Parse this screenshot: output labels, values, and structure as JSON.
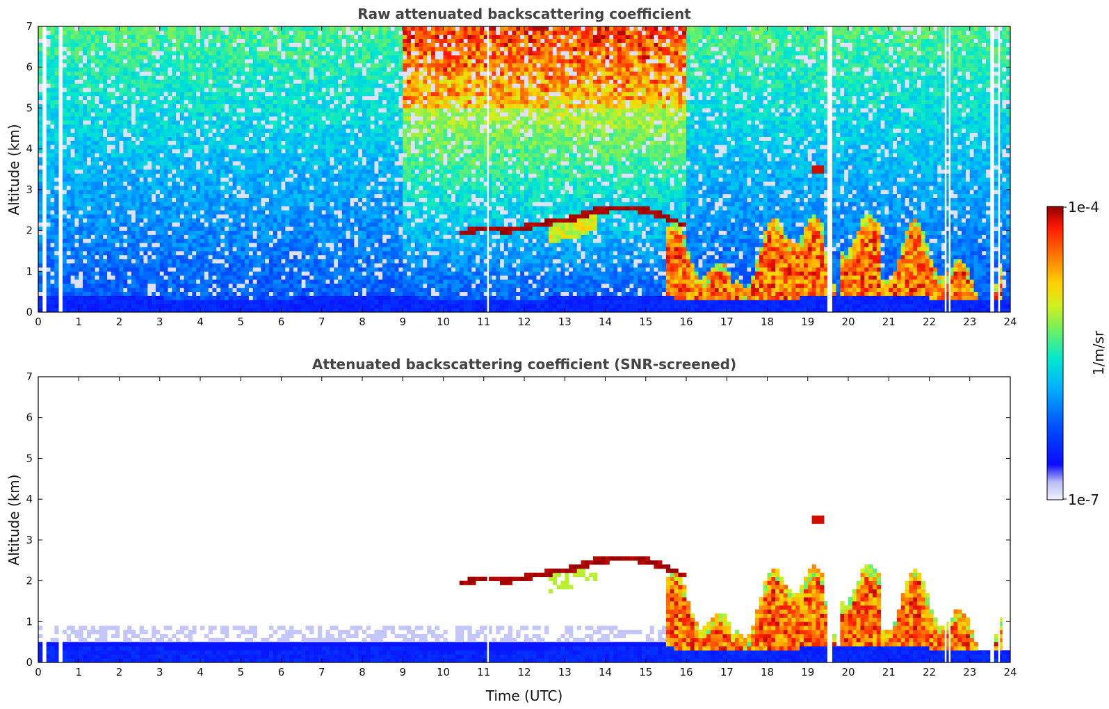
{
  "chart_data": [
    {
      "type": "heatmap",
      "title": "Raw attenuated backscattering coefficient",
      "xlabel": "",
      "ylabel": "Altitude (km)",
      "xlim": [
        0,
        24
      ],
      "ylim": [
        0,
        7
      ],
      "x_ticks": [
        "0",
        "1",
        "2",
        "3",
        "4",
        "5",
        "6",
        "7",
        "8",
        "9",
        "10",
        "11",
        "12",
        "13",
        "14",
        "15",
        "16",
        "17",
        "18",
        "19",
        "20",
        "21",
        "22",
        "23",
        "24"
      ],
      "y_ticks": [
        "0",
        "1",
        "2",
        "3",
        "4",
        "5",
        "6",
        "7"
      ],
      "gaps_utc": [
        0.15,
        0.57,
        11.1,
        19.5,
        19.58,
        22.4,
        22.5,
        23.55,
        23.72
      ],
      "features": {
        "near_surface_layer_top_km": 0.35,
        "elevated_layer": [
          [
            10.4,
            1.95
          ],
          [
            11.0,
            2.05
          ],
          [
            11.6,
            2.0
          ],
          [
            12.6,
            2.2
          ],
          [
            13.2,
            2.3
          ],
          [
            13.8,
            2.5
          ],
          [
            14.5,
            2.55
          ],
          [
            15.0,
            2.5
          ],
          [
            15.6,
            2.3
          ],
          [
            16.0,
            2.1
          ]
        ],
        "cloud_top_19h_km": 3.5
      }
    },
    {
      "type": "heatmap",
      "title": "Attenuated backscattering coefficient (SNR-screened)",
      "xlabel": "Time (UTC)",
      "ylabel": "Altitude (km)",
      "xlim": [
        0,
        24
      ],
      "ylim": [
        0,
        7
      ],
      "x_ticks": [
        "0",
        "1",
        "2",
        "3",
        "4",
        "5",
        "6",
        "7",
        "8",
        "9",
        "10",
        "11",
        "12",
        "13",
        "14",
        "15",
        "16",
        "17",
        "18",
        "19",
        "20",
        "21",
        "22",
        "23",
        "24"
      ],
      "y_ticks": [
        "0",
        "1",
        "2",
        "3",
        "4",
        "5",
        "6",
        "7"
      ],
      "gaps_utc": [
        0.15,
        0.57,
        11.1,
        19.5,
        19.58,
        22.4,
        22.5,
        23.55,
        23.72
      ]
    }
  ],
  "colorbar": {
    "label": "1/m/sr",
    "max_label": "1e-4",
    "min_label": "1e-7",
    "range": [
      1e-07,
      0.0001
    ],
    "scale": "log",
    "colormap": [
      "#ffffff",
      "#cfd2f6",
      "#8e95f0",
      "#0000ff",
      "#0060ff",
      "#00c0ff",
      "#00f0c0",
      "#60f060",
      "#c0f020",
      "#ffd000",
      "#ff8000",
      "#ff2000",
      "#a00000"
    ]
  }
}
